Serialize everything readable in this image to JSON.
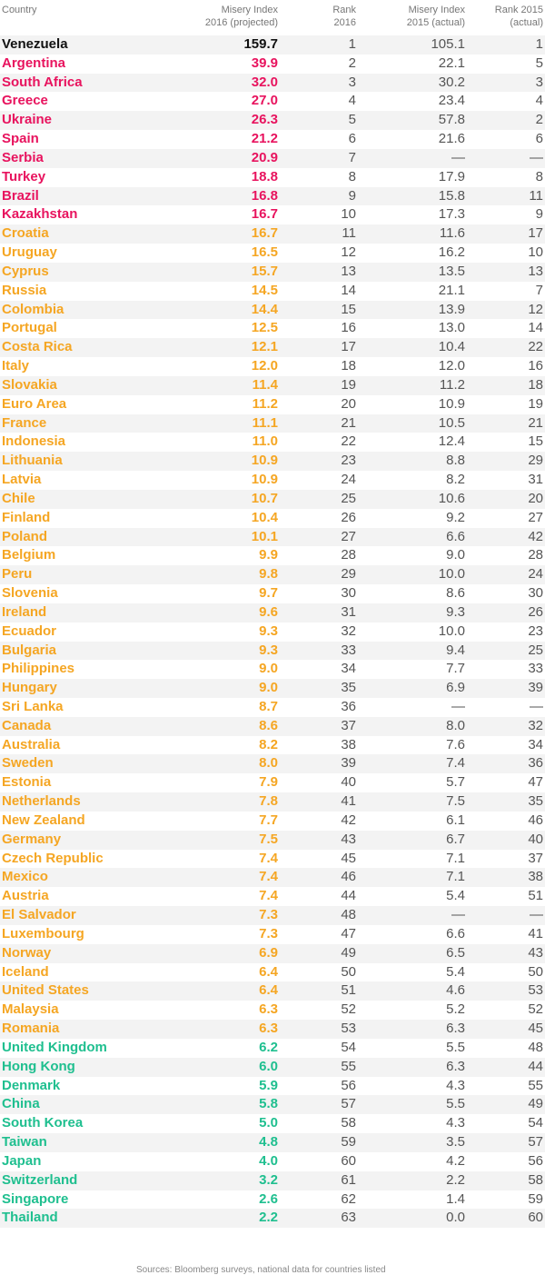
{
  "header": {
    "country": "Country",
    "misery_2016": "Misery Index\n2016 (projected)",
    "rank_2016": "Rank\n2016",
    "misery_2015": "Misery Index\n2015 (actual)",
    "rank_2015": "Rank 2015\n(actual)"
  },
  "tiers": {
    "worst": "#111111",
    "high": "#e8135e",
    "mid": "#f5a623",
    "low": "#1fbf8f"
  },
  "chart_data": {
    "type": "table",
    "columns": [
      "Country",
      "Misery Index 2016 (projected)",
      "Rank 2016",
      "Misery Index 2015 (actual)",
      "Rank 2015 (actual)"
    ],
    "rows": [
      {
        "country": "Venezuela",
        "misery_2016": "159.7",
        "rank_2016": "1",
        "misery_2015": "105.1",
        "rank_2015": "1",
        "tier": "worst"
      },
      {
        "country": "Argentina",
        "misery_2016": "39.9",
        "rank_2016": "2",
        "misery_2015": "22.1",
        "rank_2015": "5",
        "tier": "high"
      },
      {
        "country": "South Africa",
        "misery_2016": "32.0",
        "rank_2016": "3",
        "misery_2015": "30.2",
        "rank_2015": "3",
        "tier": "high"
      },
      {
        "country": "Greece",
        "misery_2016": "27.0",
        "rank_2016": "4",
        "misery_2015": "23.4",
        "rank_2015": "4",
        "tier": "high"
      },
      {
        "country": "Ukraine",
        "misery_2016": "26.3",
        "rank_2016": "5",
        "misery_2015": "57.8",
        "rank_2015": "2",
        "tier": "high"
      },
      {
        "country": "Spain",
        "misery_2016": "21.2",
        "rank_2016": "6",
        "misery_2015": "21.6",
        "rank_2015": "6",
        "tier": "high"
      },
      {
        "country": "Serbia",
        "misery_2016": "20.9",
        "rank_2016": "7",
        "misery_2015": "—",
        "rank_2015": "—",
        "tier": "high"
      },
      {
        "country": "Turkey",
        "misery_2016": "18.8",
        "rank_2016": "8",
        "misery_2015": "17.9",
        "rank_2015": "8",
        "tier": "high"
      },
      {
        "country": "Brazil",
        "misery_2016": "16.8",
        "rank_2016": "9",
        "misery_2015": "15.8",
        "rank_2015": "11",
        "tier": "high"
      },
      {
        "country": "Kazakhstan",
        "misery_2016": "16.7",
        "rank_2016": "10",
        "misery_2015": "17.3",
        "rank_2015": "9",
        "tier": "high"
      },
      {
        "country": "Croatia",
        "misery_2016": "16.7",
        "rank_2016": "11",
        "misery_2015": "11.6",
        "rank_2015": "17",
        "tier": "mid"
      },
      {
        "country": "Uruguay",
        "misery_2016": "16.5",
        "rank_2016": "12",
        "misery_2015": "16.2",
        "rank_2015": "10",
        "tier": "mid"
      },
      {
        "country": "Cyprus",
        "misery_2016": "15.7",
        "rank_2016": "13",
        "misery_2015": "13.5",
        "rank_2015": "13",
        "tier": "mid"
      },
      {
        "country": "Russia",
        "misery_2016": "14.5",
        "rank_2016": "14",
        "misery_2015": "21.1",
        "rank_2015": "7",
        "tier": "mid"
      },
      {
        "country": "Colombia",
        "misery_2016": "14.4",
        "rank_2016": "15",
        "misery_2015": "13.9",
        "rank_2015": "12",
        "tier": "mid"
      },
      {
        "country": "Portugal",
        "misery_2016": "12.5",
        "rank_2016": "16",
        "misery_2015": "13.0",
        "rank_2015": "14",
        "tier": "mid"
      },
      {
        "country": "Costa Rica",
        "misery_2016": "12.1",
        "rank_2016": "17",
        "misery_2015": "10.4",
        "rank_2015": "22",
        "tier": "mid"
      },
      {
        "country": "Italy",
        "misery_2016": "12.0",
        "rank_2016": "18",
        "misery_2015": "12.0",
        "rank_2015": "16",
        "tier": "mid"
      },
      {
        "country": "Slovakia",
        "misery_2016": "11.4",
        "rank_2016": "19",
        "misery_2015": "11.2",
        "rank_2015": "18",
        "tier": "mid"
      },
      {
        "country": "Euro Area",
        "misery_2016": "11.2",
        "rank_2016": "20",
        "misery_2015": "10.9",
        "rank_2015": "19",
        "tier": "mid"
      },
      {
        "country": "France",
        "misery_2016": "11.1",
        "rank_2016": "21",
        "misery_2015": "10.5",
        "rank_2015": "21",
        "tier": "mid"
      },
      {
        "country": "Indonesia",
        "misery_2016": "11.0",
        "rank_2016": "22",
        "misery_2015": "12.4",
        "rank_2015": "15",
        "tier": "mid"
      },
      {
        "country": "Lithuania",
        "misery_2016": "10.9",
        "rank_2016": "23",
        "misery_2015": "8.8",
        "rank_2015": "29",
        "tier": "mid"
      },
      {
        "country": "Latvia",
        "misery_2016": "10.9",
        "rank_2016": "24",
        "misery_2015": "8.2",
        "rank_2015": "31",
        "tier": "mid"
      },
      {
        "country": "Chile",
        "misery_2016": "10.7",
        "rank_2016": "25",
        "misery_2015": "10.6",
        "rank_2015": "20",
        "tier": "mid"
      },
      {
        "country": "Finland",
        "misery_2016": "10.4",
        "rank_2016": "26",
        "misery_2015": "9.2",
        "rank_2015": "27",
        "tier": "mid"
      },
      {
        "country": "Poland",
        "misery_2016": "10.1",
        "rank_2016": "27",
        "misery_2015": "6.6",
        "rank_2015": "42",
        "tier": "mid"
      },
      {
        "country": "Belgium",
        "misery_2016": "9.9",
        "rank_2016": "28",
        "misery_2015": "9.0",
        "rank_2015": "28",
        "tier": "mid"
      },
      {
        "country": "Peru",
        "misery_2016": "9.8",
        "rank_2016": "29",
        "misery_2015": "10.0",
        "rank_2015": "24",
        "tier": "mid"
      },
      {
        "country": "Slovenia",
        "misery_2016": "9.7",
        "rank_2016": "30",
        "misery_2015": "8.6",
        "rank_2015": "30",
        "tier": "mid"
      },
      {
        "country": "Ireland",
        "misery_2016": "9.6",
        "rank_2016": "31",
        "misery_2015": "9.3",
        "rank_2015": "26",
        "tier": "mid"
      },
      {
        "country": "Ecuador",
        "misery_2016": "9.3",
        "rank_2016": "32",
        "misery_2015": "10.0",
        "rank_2015": "23",
        "tier": "mid"
      },
      {
        "country": "Bulgaria",
        "misery_2016": "9.3",
        "rank_2016": "33",
        "misery_2015": "9.4",
        "rank_2015": "25",
        "tier": "mid"
      },
      {
        "country": "Philippines",
        "misery_2016": "9.0",
        "rank_2016": "34",
        "misery_2015": "7.7",
        "rank_2015": "33",
        "tier": "mid"
      },
      {
        "country": "Hungary",
        "misery_2016": "9.0",
        "rank_2016": "35",
        "misery_2015": "6.9",
        "rank_2015": "39",
        "tier": "mid"
      },
      {
        "country": "Sri Lanka",
        "misery_2016": "8.7",
        "rank_2016": "36",
        "misery_2015": "—",
        "rank_2015": "—",
        "tier": "mid"
      },
      {
        "country": "Canada",
        "misery_2016": "8.6",
        "rank_2016": "37",
        "misery_2015": "8.0",
        "rank_2015": "32",
        "tier": "mid"
      },
      {
        "country": "Australia",
        "misery_2016": "8.2",
        "rank_2016": "38",
        "misery_2015": "7.6",
        "rank_2015": "34",
        "tier": "mid"
      },
      {
        "country": "Sweden",
        "misery_2016": "8.0",
        "rank_2016": "39",
        "misery_2015": "7.4",
        "rank_2015": "36",
        "tier": "mid"
      },
      {
        "country": "Estonia",
        "misery_2016": "7.9",
        "rank_2016": "40",
        "misery_2015": "5.7",
        "rank_2015": "47",
        "tier": "mid"
      },
      {
        "country": "Netherlands",
        "misery_2016": "7.8",
        "rank_2016": "41",
        "misery_2015": "7.5",
        "rank_2015": "35",
        "tier": "mid"
      },
      {
        "country": "New Zealand",
        "misery_2016": "7.7",
        "rank_2016": "42",
        "misery_2015": "6.1",
        "rank_2015": "46",
        "tier": "mid"
      },
      {
        "country": "Germany",
        "misery_2016": "7.5",
        "rank_2016": "43",
        "misery_2015": "6.7",
        "rank_2015": "40",
        "tier": "mid"
      },
      {
        "country": "Czech Republic",
        "misery_2016": "7.4",
        "rank_2016": "45",
        "misery_2015": "7.1",
        "rank_2015": "37",
        "tier": "mid"
      },
      {
        "country": "Mexico",
        "misery_2016": "7.4",
        "rank_2016": "46",
        "misery_2015": "7.1",
        "rank_2015": "38",
        "tier": "mid"
      },
      {
        "country": "Austria",
        "misery_2016": "7.4",
        "rank_2016": "44",
        "misery_2015": "5.4",
        "rank_2015": "51",
        "tier": "mid"
      },
      {
        "country": "El Salvador",
        "misery_2016": "7.3",
        "rank_2016": "48",
        "misery_2015": "—",
        "rank_2015": "—",
        "tier": "mid"
      },
      {
        "country": "Luxembourg",
        "misery_2016": "7.3",
        "rank_2016": "47",
        "misery_2015": "6.6",
        "rank_2015": "41",
        "tier": "mid"
      },
      {
        "country": "Norway",
        "misery_2016": "6.9",
        "rank_2016": "49",
        "misery_2015": "6.5",
        "rank_2015": "43",
        "tier": "mid"
      },
      {
        "country": "Iceland",
        "misery_2016": "6.4",
        "rank_2016": "50",
        "misery_2015": "5.4",
        "rank_2015": "50",
        "tier": "mid"
      },
      {
        "country": "United States",
        "misery_2016": "6.4",
        "rank_2016": "51",
        "misery_2015": "4.6",
        "rank_2015": "53",
        "tier": "mid"
      },
      {
        "country": "Malaysia",
        "misery_2016": "6.3",
        "rank_2016": "52",
        "misery_2015": "5.2",
        "rank_2015": "52",
        "tier": "mid"
      },
      {
        "country": "Romania",
        "misery_2016": "6.3",
        "rank_2016": "53",
        "misery_2015": "6.3",
        "rank_2015": "45",
        "tier": "mid"
      },
      {
        "country": "United Kingdom",
        "misery_2016": "6.2",
        "rank_2016": "54",
        "misery_2015": "5.5",
        "rank_2015": "48",
        "tier": "low"
      },
      {
        "country": "Hong Kong",
        "misery_2016": "6.0",
        "rank_2016": "55",
        "misery_2015": "6.3",
        "rank_2015": "44",
        "tier": "low"
      },
      {
        "country": "Denmark",
        "misery_2016": "5.9",
        "rank_2016": "56",
        "misery_2015": "4.3",
        "rank_2015": "55",
        "tier": "low"
      },
      {
        "country": "China",
        "misery_2016": "5.8",
        "rank_2016": "57",
        "misery_2015": "5.5",
        "rank_2015": "49",
        "tier": "low"
      },
      {
        "country": "South Korea",
        "misery_2016": "5.0",
        "rank_2016": "58",
        "misery_2015": "4.3",
        "rank_2015": "54",
        "tier": "low"
      },
      {
        "country": "Taiwan",
        "misery_2016": "4.8",
        "rank_2016": "59",
        "misery_2015": "3.5",
        "rank_2015": "57",
        "tier": "low"
      },
      {
        "country": "Japan",
        "misery_2016": "4.0",
        "rank_2016": "60",
        "misery_2015": "4.2",
        "rank_2015": "56",
        "tier": "low"
      },
      {
        "country": "Switzerland",
        "misery_2016": "3.2",
        "rank_2016": "61",
        "misery_2015": "2.2",
        "rank_2015": "58",
        "tier": "low"
      },
      {
        "country": "Singapore",
        "misery_2016": "2.6",
        "rank_2016": "62",
        "misery_2015": "1.4",
        "rank_2015": "59",
        "tier": "low"
      },
      {
        "country": "Thailand",
        "misery_2016": "2.2",
        "rank_2016": "63",
        "misery_2015": "0.0",
        "rank_2015": "60",
        "tier": "low"
      }
    ]
  },
  "footer": "Sources: Bloomberg surveys, national data for countries listed"
}
